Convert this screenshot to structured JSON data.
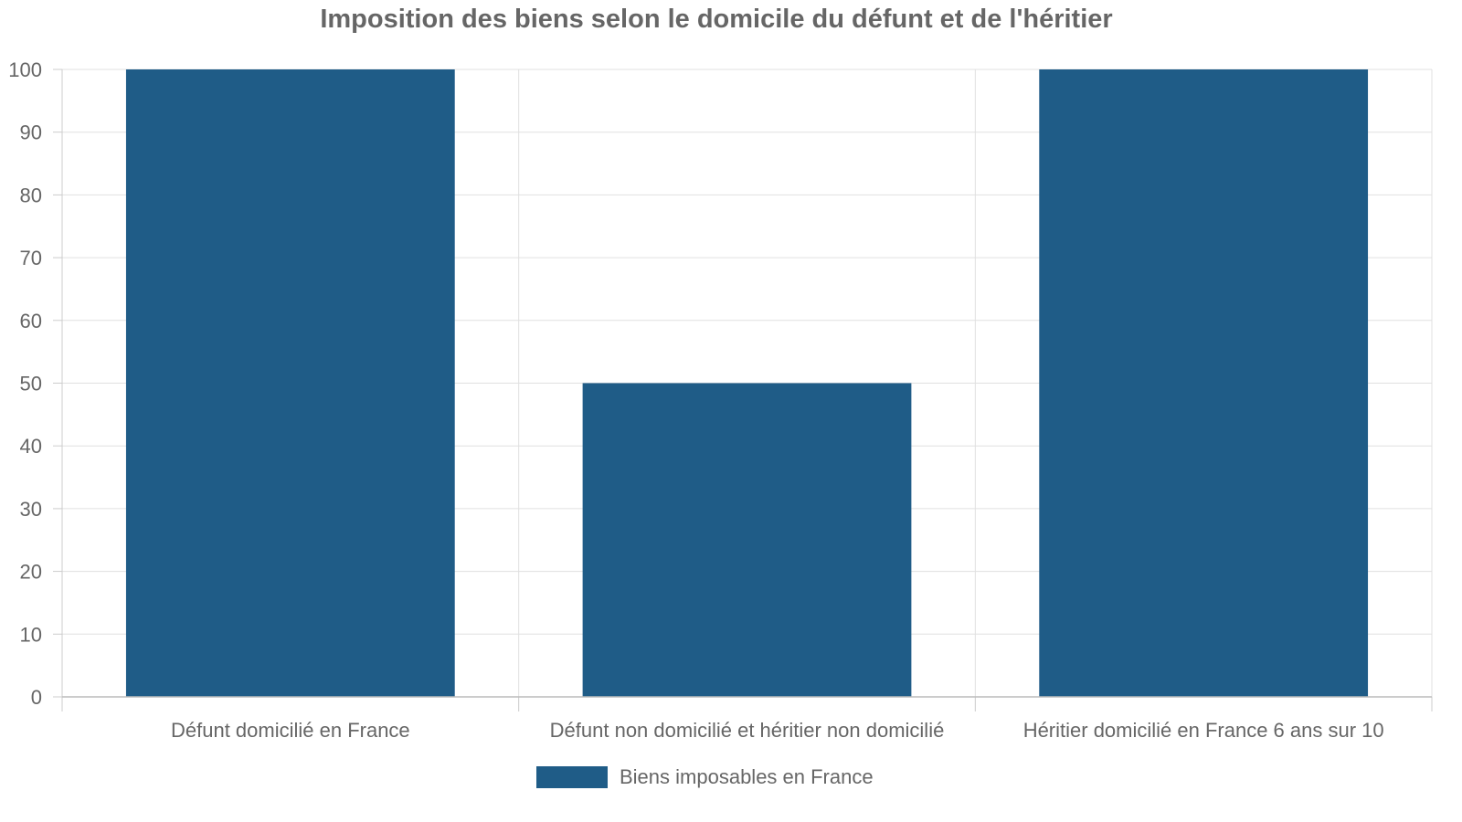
{
  "chart_data": {
    "type": "bar",
    "title": "Imposition des biens selon le domicile du défunt et de l'héritier",
    "xlabel": "",
    "ylabel": "",
    "categories": [
      "Défunt domicilié en France",
      "Défunt non domicilié et héritier non domicilié",
      "Héritier domicilié en France 6 ans sur 10"
    ],
    "series": [
      {
        "name": "Biens imposables en France",
        "values": [
          100,
          50,
          100
        ],
        "color": "#1f5c87"
      }
    ],
    "ylim": [
      0,
      100
    ],
    "yticks": [
      "0",
      "10",
      "20",
      "30",
      "40",
      "50",
      "60",
      "70",
      "80",
      "90",
      "100"
    ],
    "grid": true,
    "legend_position": "bottom"
  }
}
